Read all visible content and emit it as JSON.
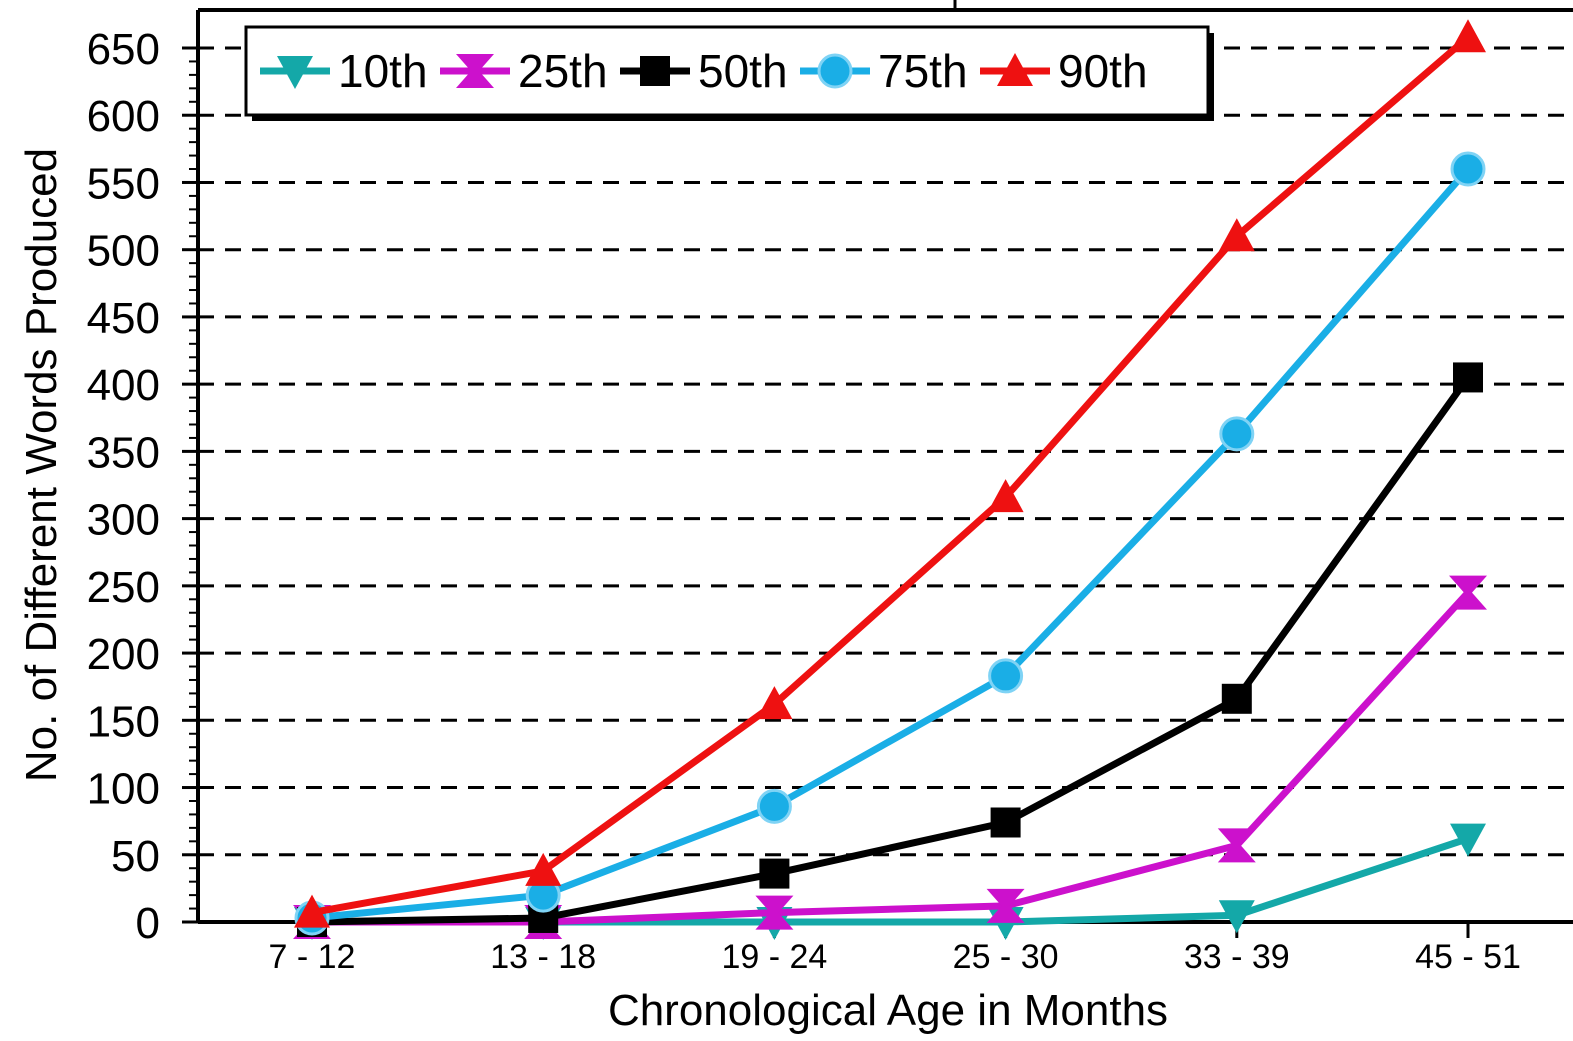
{
  "chart_data": {
    "type": "line",
    "title": "",
    "xlabel": "Chronological Age in Months",
    "ylabel": "No. of Different Words Produced",
    "categories": [
      "7 - 12",
      "13 - 18",
      "19 - 24",
      "25 - 30",
      "33 - 39",
      "45 - 51"
    ],
    "y_ticks": [
      "0",
      "50",
      "100",
      "150",
      "200",
      "250",
      "300",
      "350",
      "400",
      "450",
      "500",
      "550",
      "600",
      "650"
    ],
    "ylim": [
      0,
      650
    ],
    "grid": "horizontal dashed",
    "legend_position": "top-left",
    "series": [
      {
        "name": "10th",
        "color": "#14A8A8",
        "marker": "triangle-down",
        "values": [
          0,
          0,
          0,
          0,
          5,
          62
        ]
      },
      {
        "name": "25th",
        "color": "#CC11CC",
        "marker": "hourglass",
        "values": [
          0,
          0,
          7,
          12,
          57,
          245
        ]
      },
      {
        "name": "50th",
        "color": "#000000",
        "marker": "square",
        "values": [
          0,
          3,
          36,
          74,
          166,
          405
        ]
      },
      {
        "name": "75th",
        "color": "#1AAEE6",
        "marker": "circle",
        "values": [
          3,
          20,
          86,
          183,
          363,
          560
        ]
      },
      {
        "name": "90th",
        "color": "#EE1111",
        "marker": "triangle-up",
        "values": [
          7,
          38,
          162,
          316,
          510,
          658
        ]
      }
    ]
  }
}
